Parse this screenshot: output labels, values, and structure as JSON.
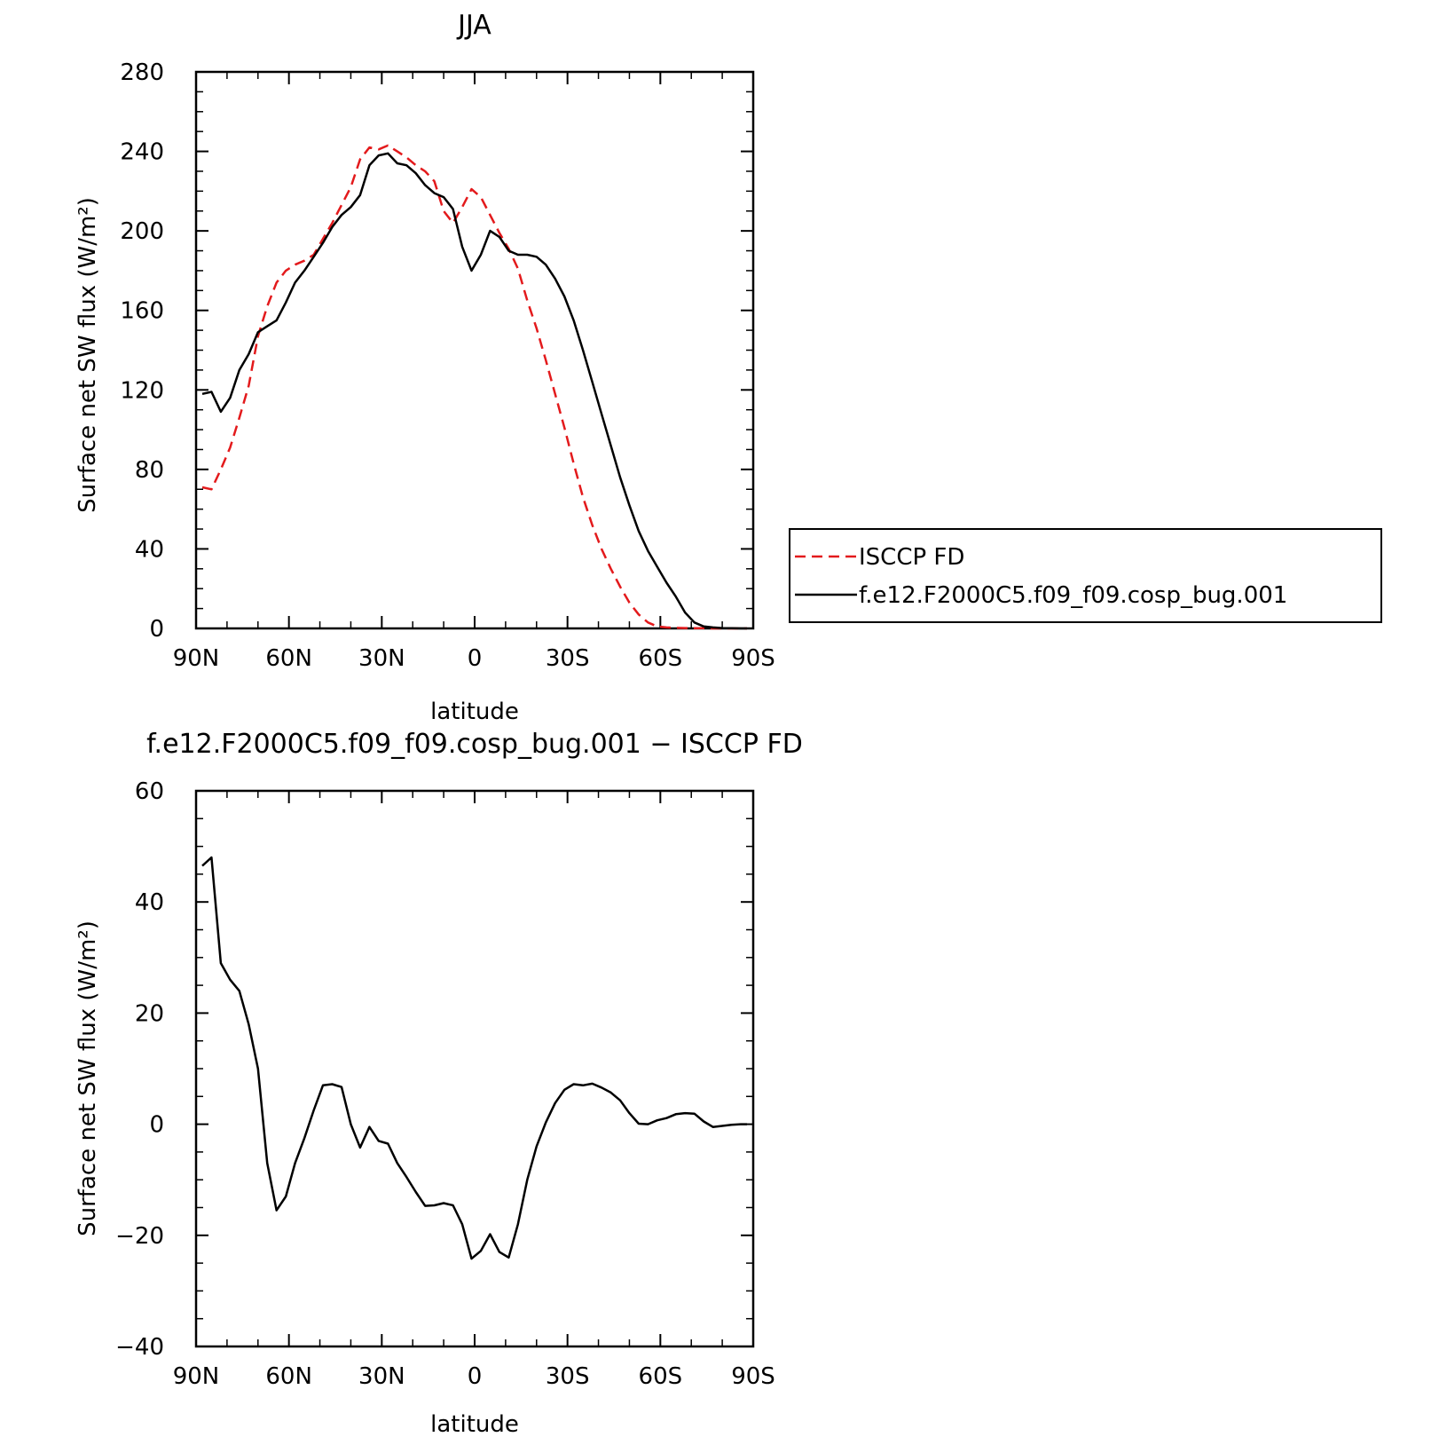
{
  "colors": {
    "model": "#000000",
    "obs": "#e31a1c",
    "axes": "#000000"
  },
  "chart_data": [
    {
      "type": "line",
      "title": "JJA",
      "xlabel": "latitude",
      "ylabel": "Surface net SW flux (W/m²)",
      "xlim": [
        90,
        -90
      ],
      "ylim": [
        0,
        280
      ],
      "xticks": [
        90,
        60,
        30,
        0,
        -30,
        -60,
        -90
      ],
      "xticklabels": [
        "90N",
        "60N",
        "30N",
        "0",
        "30S",
        "60S",
        "90S"
      ],
      "yticks": [
        0,
        40,
        80,
        120,
        160,
        200,
        240,
        280
      ],
      "yticklabels": [
        "0",
        "40",
        "80",
        "120",
        "160",
        "200",
        "240",
        "280"
      ],
      "grid": false,
      "legend_position": "right",
      "series": [
        {
          "name": "ISCCP FD",
          "style": "dashed",
          "color": "#e31a1c",
          "x": [
            88,
            85,
            82,
            79,
            76,
            73,
            70,
            67,
            64,
            61,
            58,
            55,
            52,
            49,
            46,
            43,
            40,
            37,
            34,
            31,
            28,
            25,
            22,
            19,
            16,
            13,
            10,
            7,
            4,
            1,
            -2,
            -5,
            -8,
            -11,
            -14,
            -17,
            -20,
            -23,
            -26,
            -29,
            -32,
            -35,
            -38,
            -41,
            -44,
            -47,
            -50,
            -53,
            -56,
            -59,
            -62,
            -65,
            -68,
            -71,
            -74,
            -77,
            -80,
            -83,
            -86,
            -88
          ],
          "y": [
            71,
            70,
            80,
            91,
            106,
            122,
            147,
            162,
            174,
            180,
            183,
            185,
            188,
            196,
            204,
            213,
            222,
            236,
            242,
            241,
            243,
            240,
            237,
            233,
            230,
            225,
            210,
            204,
            212,
            221,
            217,
            208,
            199,
            191,
            181,
            165,
            151,
            135,
            118,
            101,
            83,
            66,
            52,
            40,
            30,
            21,
            13,
            7,
            3,
            1,
            0.5,
            0.3,
            0.2,
            0.1,
            0.1,
            0,
            0,
            0,
            0,
            0
          ]
        },
        {
          "name": "f.e12.F2000C5.f09_f09.cosp_bug.001",
          "style": "solid",
          "color": "#000000",
          "x": [
            88,
            85,
            82,
            79,
            76,
            73,
            70,
            67,
            64,
            61,
            58,
            55,
            52,
            49,
            46,
            43,
            40,
            37,
            34,
            31,
            28,
            25,
            22,
            19,
            16,
            13,
            10,
            7,
            4,
            1,
            -2,
            -5,
            -8,
            -11,
            -14,
            -17,
            -20,
            -23,
            -26,
            -29,
            -32,
            -35,
            -38,
            -41,
            -44,
            -47,
            -50,
            -53,
            -56,
            -59,
            -62,
            -65,
            -68,
            -71,
            -74,
            -77,
            -80,
            -83,
            -86,
            -88
          ],
          "y": [
            118,
            119,
            109,
            116,
            130,
            138,
            149,
            152,
            155,
            164,
            174,
            180,
            187,
            194,
            202,
            208,
            212,
            218,
            233,
            238,
            239,
            234,
            233,
            229,
            223,
            219,
            217,
            211,
            192,
            180,
            188,
            200,
            197,
            190,
            188,
            188,
            187,
            183,
            176,
            167,
            155,
            140,
            124,
            108,
            92,
            76,
            62,
            49,
            39,
            31,
            23,
            16,
            8,
            3,
            1,
            0.5,
            0.2,
            0.1,
            0,
            0
          ]
        }
      ]
    },
    {
      "type": "line",
      "title": "f.e12.F2000C5.f09_f09.cosp_bug.001 − ISCCP FD",
      "xlabel": "latitude",
      "ylabel": "Surface net SW flux (W/m²)",
      "xlim": [
        90,
        -90
      ],
      "ylim": [
        -40,
        60
      ],
      "xticks": [
        90,
        60,
        30,
        0,
        -30,
        -60,
        -90
      ],
      "xticklabels": [
        "90N",
        "60N",
        "30N",
        "0",
        "30S",
        "60S",
        "90S"
      ],
      "yticks": [
        -40,
        -20,
        0,
        20,
        40,
        60
      ],
      "yticklabels": [
        "−40",
        "−20",
        "0",
        "20",
        "40",
        "60"
      ],
      "grid": false,
      "series": [
        {
          "style": "solid",
          "color": "#000000",
          "x": [
            88,
            85,
            82,
            79,
            76,
            73,
            70,
            67,
            64,
            61,
            58,
            55,
            52,
            49,
            46,
            43,
            40,
            37,
            34,
            31,
            28,
            25,
            22,
            19,
            16,
            13,
            10,
            7,
            4,
            1,
            -2,
            -5,
            -8,
            -11,
            -14,
            -17,
            -20,
            -23,
            -26,
            -29,
            -32,
            -35,
            -38,
            -41,
            -44,
            -47,
            -50,
            -53,
            -56,
            -59,
            -62,
            -65,
            -68,
            -71,
            -74,
            -77,
            -80,
            -83,
            -86,
            -88
          ],
          "y": [
            46.5,
            48,
            29,
            26,
            24,
            18,
            10,
            -7,
            -15.5,
            -13,
            -7,
            -2.5,
            2.5,
            7,
            7.2,
            6.7,
            0,
            -4.2,
            -0.5,
            -3,
            -3.5,
            -7,
            -9.5,
            -12.2,
            -14.7,
            -14.6,
            -14.2,
            -14.6,
            -18,
            -24.2,
            -22.8,
            -19.8,
            -23,
            -24,
            -18,
            -10,
            -4,
            0.3,
            3.8,
            6.2,
            7.2,
            7,
            7.3,
            6.6,
            5.7,
            4.3,
            2,
            0.1,
            0,
            0.7,
            1.1,
            1.8,
            2,
            1.9,
            0.5,
            -0.5,
            -0.3,
            -0.1,
            0,
            0
          ]
        }
      ]
    }
  ]
}
